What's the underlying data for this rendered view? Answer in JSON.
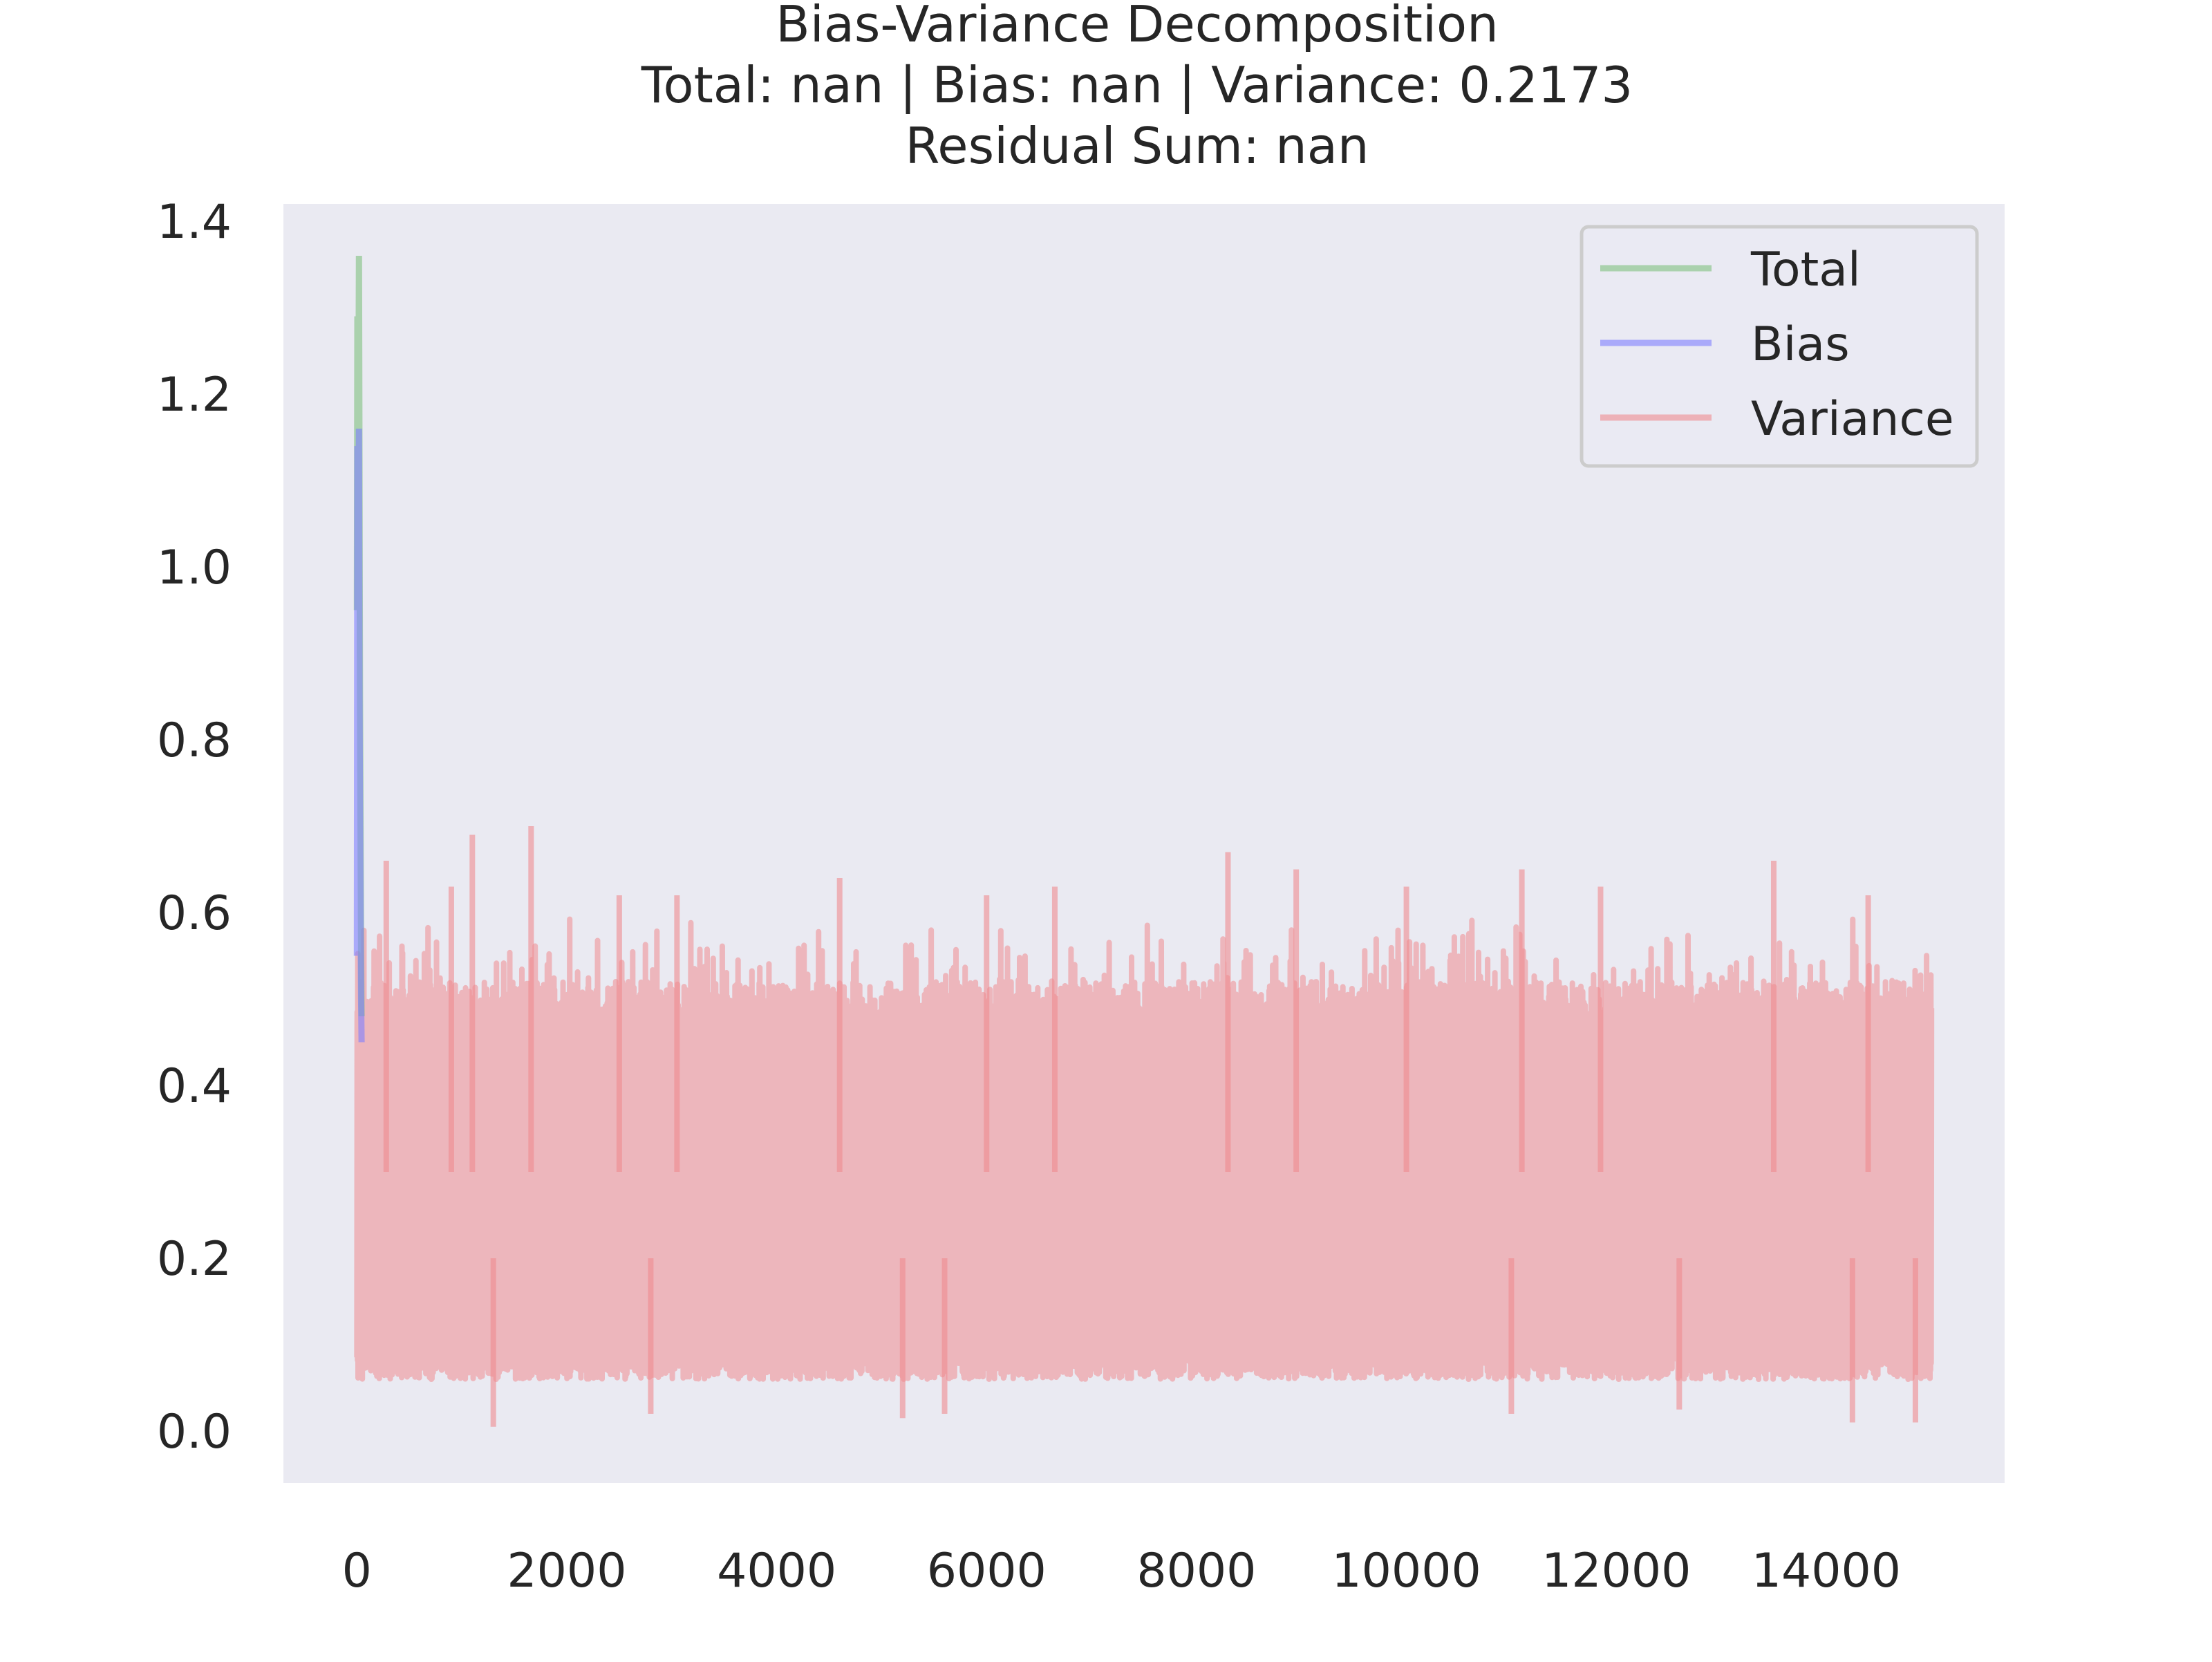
{
  "chart_data": {
    "type": "line",
    "title_lines": [
      "Bias-Variance Decomposition",
      "Total: nan | Bias: nan | Variance: 0.2173",
      "Residual Sum: nan"
    ],
    "xlabel": "",
    "ylabel": "",
    "xlim": [
      -700,
      15700
    ],
    "ylim": [
      -0.06,
      1.42
    ],
    "xticks": [
      0,
      2000,
      4000,
      6000,
      8000,
      10000,
      12000,
      14000
    ],
    "xtick_labels": [
      "0",
      "2000",
      "4000",
      "6000",
      "8000",
      "10000",
      "12000",
      "14000"
    ],
    "yticks": [
      0.0,
      0.2,
      0.4,
      0.6,
      0.8,
      1.0,
      1.2,
      1.4
    ],
    "ytick_labels": [
      "0.0",
      "0.2",
      "0.4",
      "0.6",
      "0.8",
      "1.0",
      "1.2",
      "1.4"
    ],
    "grid": false,
    "legend_position": "upper right",
    "legend": [
      "Total",
      "Bias",
      "Variance"
    ],
    "series": [
      {
        "name": "Total",
        "color": "#7fbf7f",
        "x": [
          0,
          5,
          10,
          15,
          20,
          25,
          30,
          35,
          40,
          45
        ],
        "y": [
          0.95,
          1.29,
          1.05,
          1.2,
          1.36,
          1.1,
          0.85,
          0.7,
          0.55,
          0.48
        ]
      },
      {
        "name": "Bias",
        "color": "#7f7fff",
        "x": [
          0,
          5,
          10,
          15,
          20,
          25,
          30,
          35,
          40,
          45
        ],
        "y": [
          0.55,
          1.14,
          0.93,
          1.05,
          1.16,
          0.85,
          0.72,
          0.6,
          0.5,
          0.45
        ]
      },
      {
        "name": "Variance",
        "color": "#ef8a90",
        "n_points": 15000,
        "typical_upper": [
          0.44,
          0.52
        ],
        "typical_lower": [
          0.06,
          0.1
        ],
        "peaks": [
          {
            "x": 280,
            "y": 0.66
          },
          {
            "x": 900,
            "y": 0.63
          },
          {
            "x": 1100,
            "y": 0.69
          },
          {
            "x": 1660,
            "y": 0.7
          },
          {
            "x": 2500,
            "y": 0.62
          },
          {
            "x": 3050,
            "y": 0.62
          },
          {
            "x": 4600,
            "y": 0.64
          },
          {
            "x": 6000,
            "y": 0.62
          },
          {
            "x": 6650,
            "y": 0.63
          },
          {
            "x": 8300,
            "y": 0.67
          },
          {
            "x": 8950,
            "y": 0.65
          },
          {
            "x": 10000,
            "y": 0.63
          },
          {
            "x": 11100,
            "y": 0.65
          },
          {
            "x": 11850,
            "y": 0.63
          },
          {
            "x": 13500,
            "y": 0.66
          },
          {
            "x": 14400,
            "y": 0.62
          }
        ],
        "troughs": [
          {
            "x": 1300,
            "y": 0.005
          },
          {
            "x": 2800,
            "y": 0.02
          },
          {
            "x": 5200,
            "y": 0.015
          },
          {
            "x": 5600,
            "y": 0.02
          },
          {
            "x": 11000,
            "y": 0.02
          },
          {
            "x": 12600,
            "y": 0.025
          },
          {
            "x": 14250,
            "y": 0.01
          },
          {
            "x": 14850,
            "y": 0.01
          }
        ]
      }
    ]
  }
}
